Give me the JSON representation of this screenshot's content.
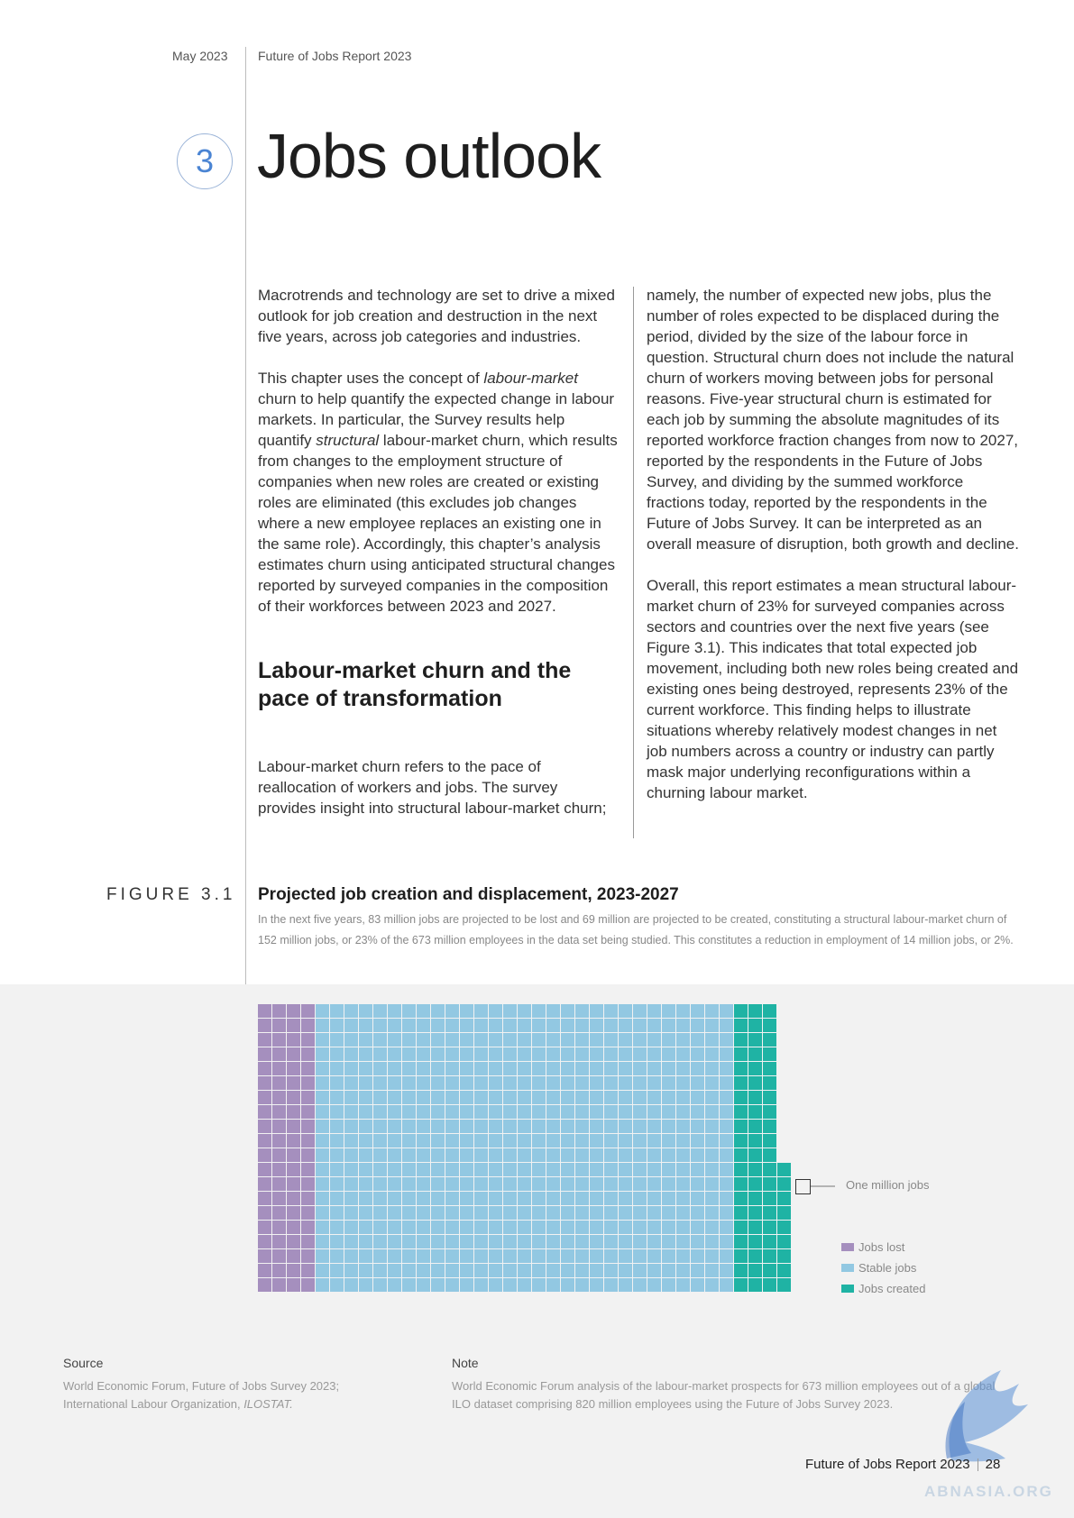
{
  "header": {
    "date": "May 2023",
    "report": "Future of Jobs Report 2023"
  },
  "chapter": {
    "number": "3",
    "title": "Jobs outlook"
  },
  "col1": {
    "p1": "Macrotrends and technology are set to drive a mixed outlook for job creation and destruction in the next five years, across job categories and industries.",
    "p2_a": "This chapter uses the concept of ",
    "p2_em1": "labour-market",
    "p2_b": " churn to help quantify the expected change in labour markets. In particular, the Survey results help quantify ",
    "p2_em2": "structural",
    "p2_c": " labour-market churn, which results from changes to the employment structure of companies when new roles are created or existing roles are eliminated (this excludes job changes where a new employee replaces an existing one in the same role). Accordingly, this chapter’s analysis estimates churn using anticipated structural changes reported by surveyed companies in the composition of their workforces between 2023 and 2027.",
    "subheading": "Labour-market churn and the pace of transformation",
    "p3": "Labour-market churn refers to the pace of reallocation of workers and jobs. The survey provides insight into structural labour-market churn;"
  },
  "col2": {
    "p1": "namely, the number of expected new jobs, plus the number of roles expected to be displaced during the period, divided by the size of the labour force in question. Structural churn does not include the natural churn of workers moving between jobs for personal reasons. Five-year structural churn is estimated for each job by summing the absolute magnitudes of its reported workforce fraction changes from now to 2027, reported by the respondents in the Future of Jobs Survey, and dividing by the summed workforce fractions today, reported by the respondents in the Future of Jobs Survey. It can be interpreted as an overall measure of disruption, both growth and decline.",
    "p2": "Overall, this report estimates a mean structural labour-market churn of 23% for surveyed companies across sectors and countries over the next five years (see Figure 3.1). This indicates that total expected job movement, including both new roles being created and existing ones being destroyed, represents 23% of the current workforce. This finding helps to illustrate situations whereby relatively modest changes in net job numbers across a country or industry can partly mask major underlying reconfigurations within a churning labour market."
  },
  "figure": {
    "label": "FIGURE 3.1",
    "title": "Projected job creation and displacement, 2023-2027",
    "subtitle": "In the next five years, 83 million jobs are projected to be lost and 69 million are projected to be created, constituting a structural labour-market churn of 152 million jobs, or 23% of the 673 million employees in the data set being studied. This constitutes a reduction in employment of 14 million jobs, or 2%.",
    "callout": "One million jobs"
  },
  "chart_data": {
    "type": "waffle",
    "unit": "One million jobs",
    "series": [
      {
        "name": "Jobs lost",
        "value": 83,
        "color": "#a58fbe"
      },
      {
        "name": "Stable jobs",
        "value": 590,
        "color": "#92c8e2"
      },
      {
        "name": "Jobs created",
        "value": 69,
        "color": "#1fb3a4"
      }
    ]
  },
  "source": {
    "heading": "Source",
    "text_a": "World Economic Forum, Future of Jobs Survey 2023; International Labour Organization, ",
    "text_em": "ILOSTAT."
  },
  "note": {
    "heading": "Note",
    "text": "World Economic Forum analysis of the labour-market prospects for 673 million employees out of a global ILO dataset comprising 820 million employees using the Future of Jobs Survey 2023."
  },
  "footer": {
    "report": "Future of Jobs Report 2023",
    "page": "28"
  },
  "watermark": {
    "text": "ABNASIA.ORG"
  }
}
